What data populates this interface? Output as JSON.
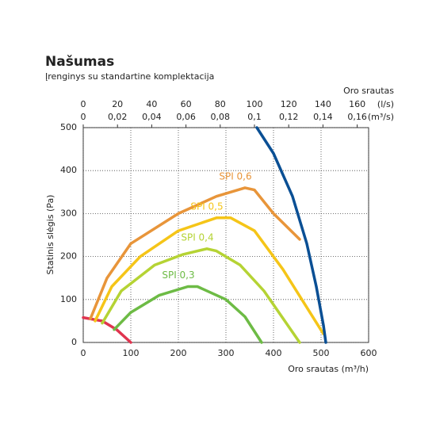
{
  "chart_data": {
    "type": "line",
    "title": "Našumas",
    "subtitle": "Įrenginys su standartine komplektacija",
    "xlabel": "Oro srautas (m³/h)",
    "ylabel": "Statinis slėgis (Pa)",
    "top_label": "Oro srautas",
    "xlim": [
      0,
      600
    ],
    "xticks": [
      0,
      100,
      200,
      300,
      400,
      500,
      600
    ],
    "ylim": [
      0,
      500
    ],
    "yticks": [
      0,
      100,
      200,
      300,
      400,
      500
    ],
    "grid": true,
    "top_axes": [
      {
        "unit": "(l/s)",
        "lim": [
          0,
          166.67
        ],
        "ticks": [
          0,
          20,
          40,
          60,
          80,
          100,
          120,
          140,
          160
        ]
      },
      {
        "unit": "(m³/s)",
        "lim": [
          0,
          0.16667
        ],
        "ticks": [
          0,
          {
            "value": 0.02,
            "label": "0,02"
          },
          {
            "value": 0.04,
            "label": "0,04"
          },
          {
            "value": 0.06,
            "label": "0,06"
          },
          {
            "value": 0.08,
            "label": "0,08"
          },
          {
            "value": 0.1,
            "label": "0,1"
          },
          {
            "value": 0.12,
            "label": "0,12"
          },
          {
            "value": 0.14,
            "label": "0,14"
          },
          {
            "value": 0.16,
            "label": "0,16"
          }
        ]
      }
    ],
    "series": [
      {
        "color": "#e0344f",
        "x": [
          0,
          40,
          70,
          100
        ],
        "values": [
          58,
          50,
          30,
          0
        ]
      },
      {
        "name": "SPI 0,6",
        "color": "#e8953a",
        "x": [
          15,
          50,
          100,
          200,
          280,
          340,
          360,
          400,
          455
        ],
        "values": [
          55,
          150,
          230,
          300,
          340,
          360,
          355,
          300,
          240
        ]
      },
      {
        "name": "SPI 0,5",
        "color": "#f5c518",
        "x": [
          25,
          60,
          120,
          200,
          280,
          310,
          360,
          420,
          505
        ],
        "values": [
          50,
          130,
          200,
          260,
          290,
          290,
          260,
          170,
          20
        ]
      },
      {
        "name": "SPI 0,4",
        "color": "#b5d334",
        "x": [
          40,
          80,
          150,
          210,
          260,
          280,
          330,
          380,
          455
        ],
        "values": [
          45,
          120,
          180,
          205,
          218,
          213,
          180,
          120,
          0
        ]
      },
      {
        "name": "SPI 0,3",
        "color": "#6dbb45",
        "x": [
          65,
          100,
          160,
          220,
          240,
          300,
          340,
          375
        ],
        "values": [
          30,
          70,
          110,
          130,
          130,
          100,
          60,
          0
        ]
      },
      {
        "color": "#0a4f94",
        "x": [
          365,
          400,
          440,
          470,
          490,
          505,
          510
        ],
        "values": [
          500,
          440,
          340,
          230,
          130,
          40,
          0
        ]
      }
    ]
  }
}
